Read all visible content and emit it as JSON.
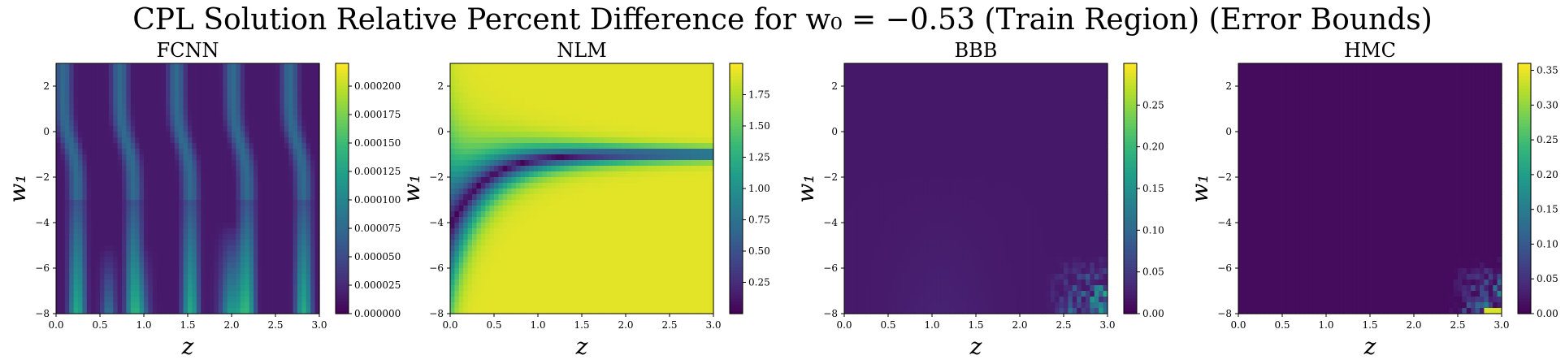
{
  "figure": {
    "suptitle": "CPL Solution Relative Percent Difference for w₀ = −0.53 (Train Region) (Error Bounds)"
  },
  "colormap": [
    "#440154",
    "#482878",
    "#3e4989",
    "#31688e",
    "#26828e",
    "#1f9e89",
    "#35b779",
    "#6ece58",
    "#b5de2b",
    "#fde725"
  ],
  "chart_data": [
    {
      "type": "heatmap",
      "title": "FCNN",
      "xlabel": "z",
      "ylabel": "w₁",
      "xlim": [
        0.0,
        3.0
      ],
      "ylim": [
        -8,
        3
      ],
      "xticks": [
        "0.0",
        "0.5",
        "1.0",
        "1.5",
        "2.0",
        "2.5",
        "3.0"
      ],
      "yticks": [
        "2",
        "0",
        "−2",
        "−4",
        "−6",
        "−8"
      ],
      "grid": false,
      "colorbar": {
        "range": [
          0.0,
          0.00022
        ],
        "ticks": [
          0.0,
          2.5e-05,
          5e-05,
          7.5e-05,
          0.0001,
          0.000125,
          0.00015,
          0.000175,
          0.0002
        ],
        "tick_labels": [
          "0.000000",
          "0.000025",
          "0.000050",
          "0.000075",
          "0.000100",
          "0.000125",
          "0.000150",
          "0.000175",
          "0.000200"
        ]
      },
      "pattern": "vertical bands with diagonal dark seams; maximum ~0.00022 near z=2.0, w₁=−8"
    },
    {
      "type": "heatmap",
      "title": "NLM",
      "xlabel": "z",
      "ylabel": "w₁",
      "xlim": [
        0.0,
        3.0
      ],
      "ylim": [
        -8,
        3
      ],
      "xticks": [
        "0.0",
        "0.5",
        "1.0",
        "1.5",
        "2.0",
        "2.5",
        "3.0"
      ],
      "yticks": [
        "2",
        "0",
        "−2",
        "−4",
        "−6",
        "−8"
      ],
      "grid": false,
      "colorbar": {
        "range": [
          0.0,
          2.0
        ],
        "ticks": [
          0.25,
          0.5,
          0.75,
          1.0,
          1.25,
          1.5,
          1.75
        ],
        "tick_labels": [
          "0.25",
          "0.50",
          "0.75",
          "1.00",
          "1.25",
          "1.50",
          "1.75"
        ]
      },
      "pattern": "dark curve near w₁≈−1 approaching from low z; saturates to ~2.0 away from curve at large z"
    },
    {
      "type": "heatmap",
      "title": "BBB",
      "xlabel": "z",
      "ylabel": "w₁",
      "xlim": [
        0.0,
        3.0
      ],
      "ylim": [
        -8,
        3
      ],
      "xticks": [
        "0.0",
        "0.5",
        "1.0",
        "1.5",
        "2.0",
        "2.5",
        "3.0"
      ],
      "yticks": [
        "2",
        "0",
        "−2",
        "−4",
        "−6",
        "−8"
      ],
      "grid": false,
      "colorbar": {
        "range": [
          0.0,
          0.3
        ],
        "ticks": [
          0.0,
          0.05,
          0.1,
          0.15,
          0.2,
          0.25
        ],
        "tick_labels": [
          "0.00",
          "0.05",
          "0.10",
          "0.15",
          "0.20",
          "0.25"
        ]
      },
      "pattern": "near zero almost everywhere; noisy high cells near z>2.4, w₁<−6"
    },
    {
      "type": "heatmap",
      "title": "HMC",
      "xlabel": "z",
      "ylabel": "w₁",
      "xlim": [
        0.0,
        3.0
      ],
      "ylim": [
        -8,
        3
      ],
      "xticks": [
        "0.0",
        "0.5",
        "1.0",
        "1.5",
        "2.0",
        "2.5",
        "3.0"
      ],
      "yticks": [
        "2",
        "0",
        "−2",
        "−4",
        "−6",
        "−8"
      ],
      "grid": false,
      "colorbar": {
        "range": [
          0.0,
          0.36
        ],
        "ticks": [
          0.0,
          0.05,
          0.1,
          0.15,
          0.2,
          0.25,
          0.3,
          0.35
        ],
        "tick_labels": [
          "0.00",
          "0.05",
          "0.10",
          "0.15",
          "0.20",
          "0.25",
          "0.30",
          "0.35"
        ]
      },
      "pattern": "near zero almost everywhere; noisy high cells near z>2.5, w₁<−6, peak ~0.36"
    }
  ]
}
